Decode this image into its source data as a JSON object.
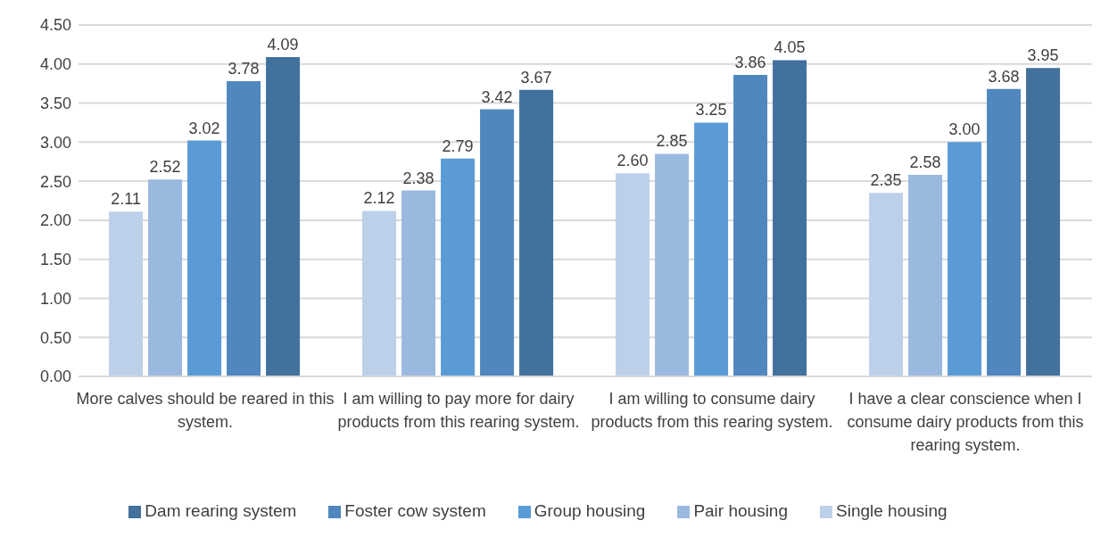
{
  "chart_data": {
    "type": "bar",
    "categories": [
      "More calves should be reared in this system.",
      "I am willing to pay more for dairy products from this rearing system.",
      "I am willing to consume dairy products from this rearing system.",
      "I have a clear conscience when I consume dairy products from this rearing system."
    ],
    "series": [
      {
        "name": "Single housing",
        "color": "#bdd0e9",
        "values": [
          2.11,
          2.12,
          2.6,
          2.35
        ],
        "value_labels": [
          "2.11",
          "2.12",
          "2.60",
          "2.35"
        ]
      },
      {
        "name": "Pair housing",
        "color": "#9ab9df",
        "values": [
          2.52,
          2.38,
          2.85,
          2.58
        ],
        "value_labels": [
          "2.52",
          "2.38",
          "2.85",
          "2.58"
        ]
      },
      {
        "name": "Group housing",
        "color": "#5b9bd5",
        "values": [
          3.02,
          2.79,
          3.25,
          3.0
        ],
        "value_labels": [
          "3.02",
          "2.79",
          "3.25",
          "3.00"
        ]
      },
      {
        "name": "Foster cow system",
        "color": "#4f87be",
        "values": [
          3.78,
          3.42,
          3.86,
          3.68
        ],
        "value_labels": [
          "3.78",
          "3.42",
          "3.86",
          "3.68"
        ]
      },
      {
        "name": "Dam rearing system",
        "color": "#41719c",
        "values": [
          4.09,
          3.67,
          4.05,
          3.95
        ],
        "value_labels": [
          "4.09",
          "3.67",
          "4.05",
          "3.95"
        ]
      }
    ],
    "ylim": [
      0,
      4.5
    ],
    "yticks": [
      {
        "value": 0,
        "label": "0.00"
      },
      {
        "value": 0.5,
        "label": "0.50"
      },
      {
        "value": 1,
        "label": "1.00"
      },
      {
        "value": 1.5,
        "label": "1.50"
      },
      {
        "value": 2,
        "label": "2.00"
      },
      {
        "value": 2.5,
        "label": "2.50"
      },
      {
        "value": 3,
        "label": "3.00"
      },
      {
        "value": 3.5,
        "label": "3.50"
      },
      {
        "value": 4,
        "label": "4.00"
      },
      {
        "value": 4.5,
        "label": "4.50"
      }
    ],
    "grid": "y",
    "legend": "bottom"
  }
}
